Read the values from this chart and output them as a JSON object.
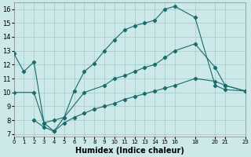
{
  "xlabel": "Humidex (Indice chaleur)",
  "background_color": "#cce8e8",
  "grid_color": "#aacfcf",
  "line_color": "#1a6b6b",
  "series": [
    {
      "x": [
        0,
        1,
        2,
        3,
        4,
        5,
        6,
        7,
        8,
        9,
        10,
        11,
        12,
        13,
        14,
        15,
        16,
        18,
        20,
        21,
        23
      ],
      "y": [
        12.8,
        11.5,
        12.2,
        7.8,
        7.2,
        8.2,
        10.1,
        11.5,
        12.1,
        13.0,
        13.8,
        14.5,
        14.8,
        15.0,
        15.2,
        16.0,
        16.2,
        15.4,
        10.5,
        10.2,
        10.1
      ]
    },
    {
      "x": [
        0,
        2,
        3,
        4,
        5,
        7,
        9,
        10,
        11,
        12,
        13,
        14,
        15,
        16,
        18,
        20,
        21,
        23
      ],
      "y": [
        10.0,
        10.0,
        7.8,
        8.0,
        8.2,
        10.0,
        10.5,
        11.0,
        11.2,
        11.5,
        11.8,
        12.0,
        12.5,
        13.0,
        13.5,
        11.8,
        10.5,
        10.1
      ]
    },
    {
      "x": [
        2,
        3,
        4,
        5,
        6,
        7,
        8,
        9,
        10,
        11,
        12,
        13,
        14,
        15,
        16,
        18,
        20,
        21,
        23
      ],
      "y": [
        8.0,
        7.5,
        7.2,
        7.8,
        8.2,
        8.5,
        8.8,
        9.0,
        9.2,
        9.5,
        9.7,
        9.9,
        10.1,
        10.3,
        10.5,
        11.0,
        10.8,
        10.5,
        10.1
      ]
    }
  ],
  "xlim": [
    0,
    23
  ],
  "ylim": [
    6.8,
    16.5
  ],
  "xtick_positions": [
    0,
    1,
    2,
    3,
    4,
    5,
    6,
    7,
    8,
    9,
    10,
    11,
    12,
    13,
    14,
    15,
    16,
    18,
    20,
    21,
    23
  ],
  "xtick_labels": [
    "0",
    "1",
    "2",
    "3",
    "4",
    "5",
    "6",
    "7",
    "8",
    "9",
    "10",
    "11",
    "12",
    "13",
    "14",
    "15",
    "16",
    "18",
    "20",
    "21",
    "23"
  ],
  "ytick_positions": [
    7,
    8,
    9,
    10,
    11,
    12,
    13,
    14,
    15,
    16
  ],
  "ytick_labels": [
    "7",
    "8",
    "9",
    "10",
    "11",
    "12",
    "13",
    "14",
    "15",
    "16"
  ]
}
